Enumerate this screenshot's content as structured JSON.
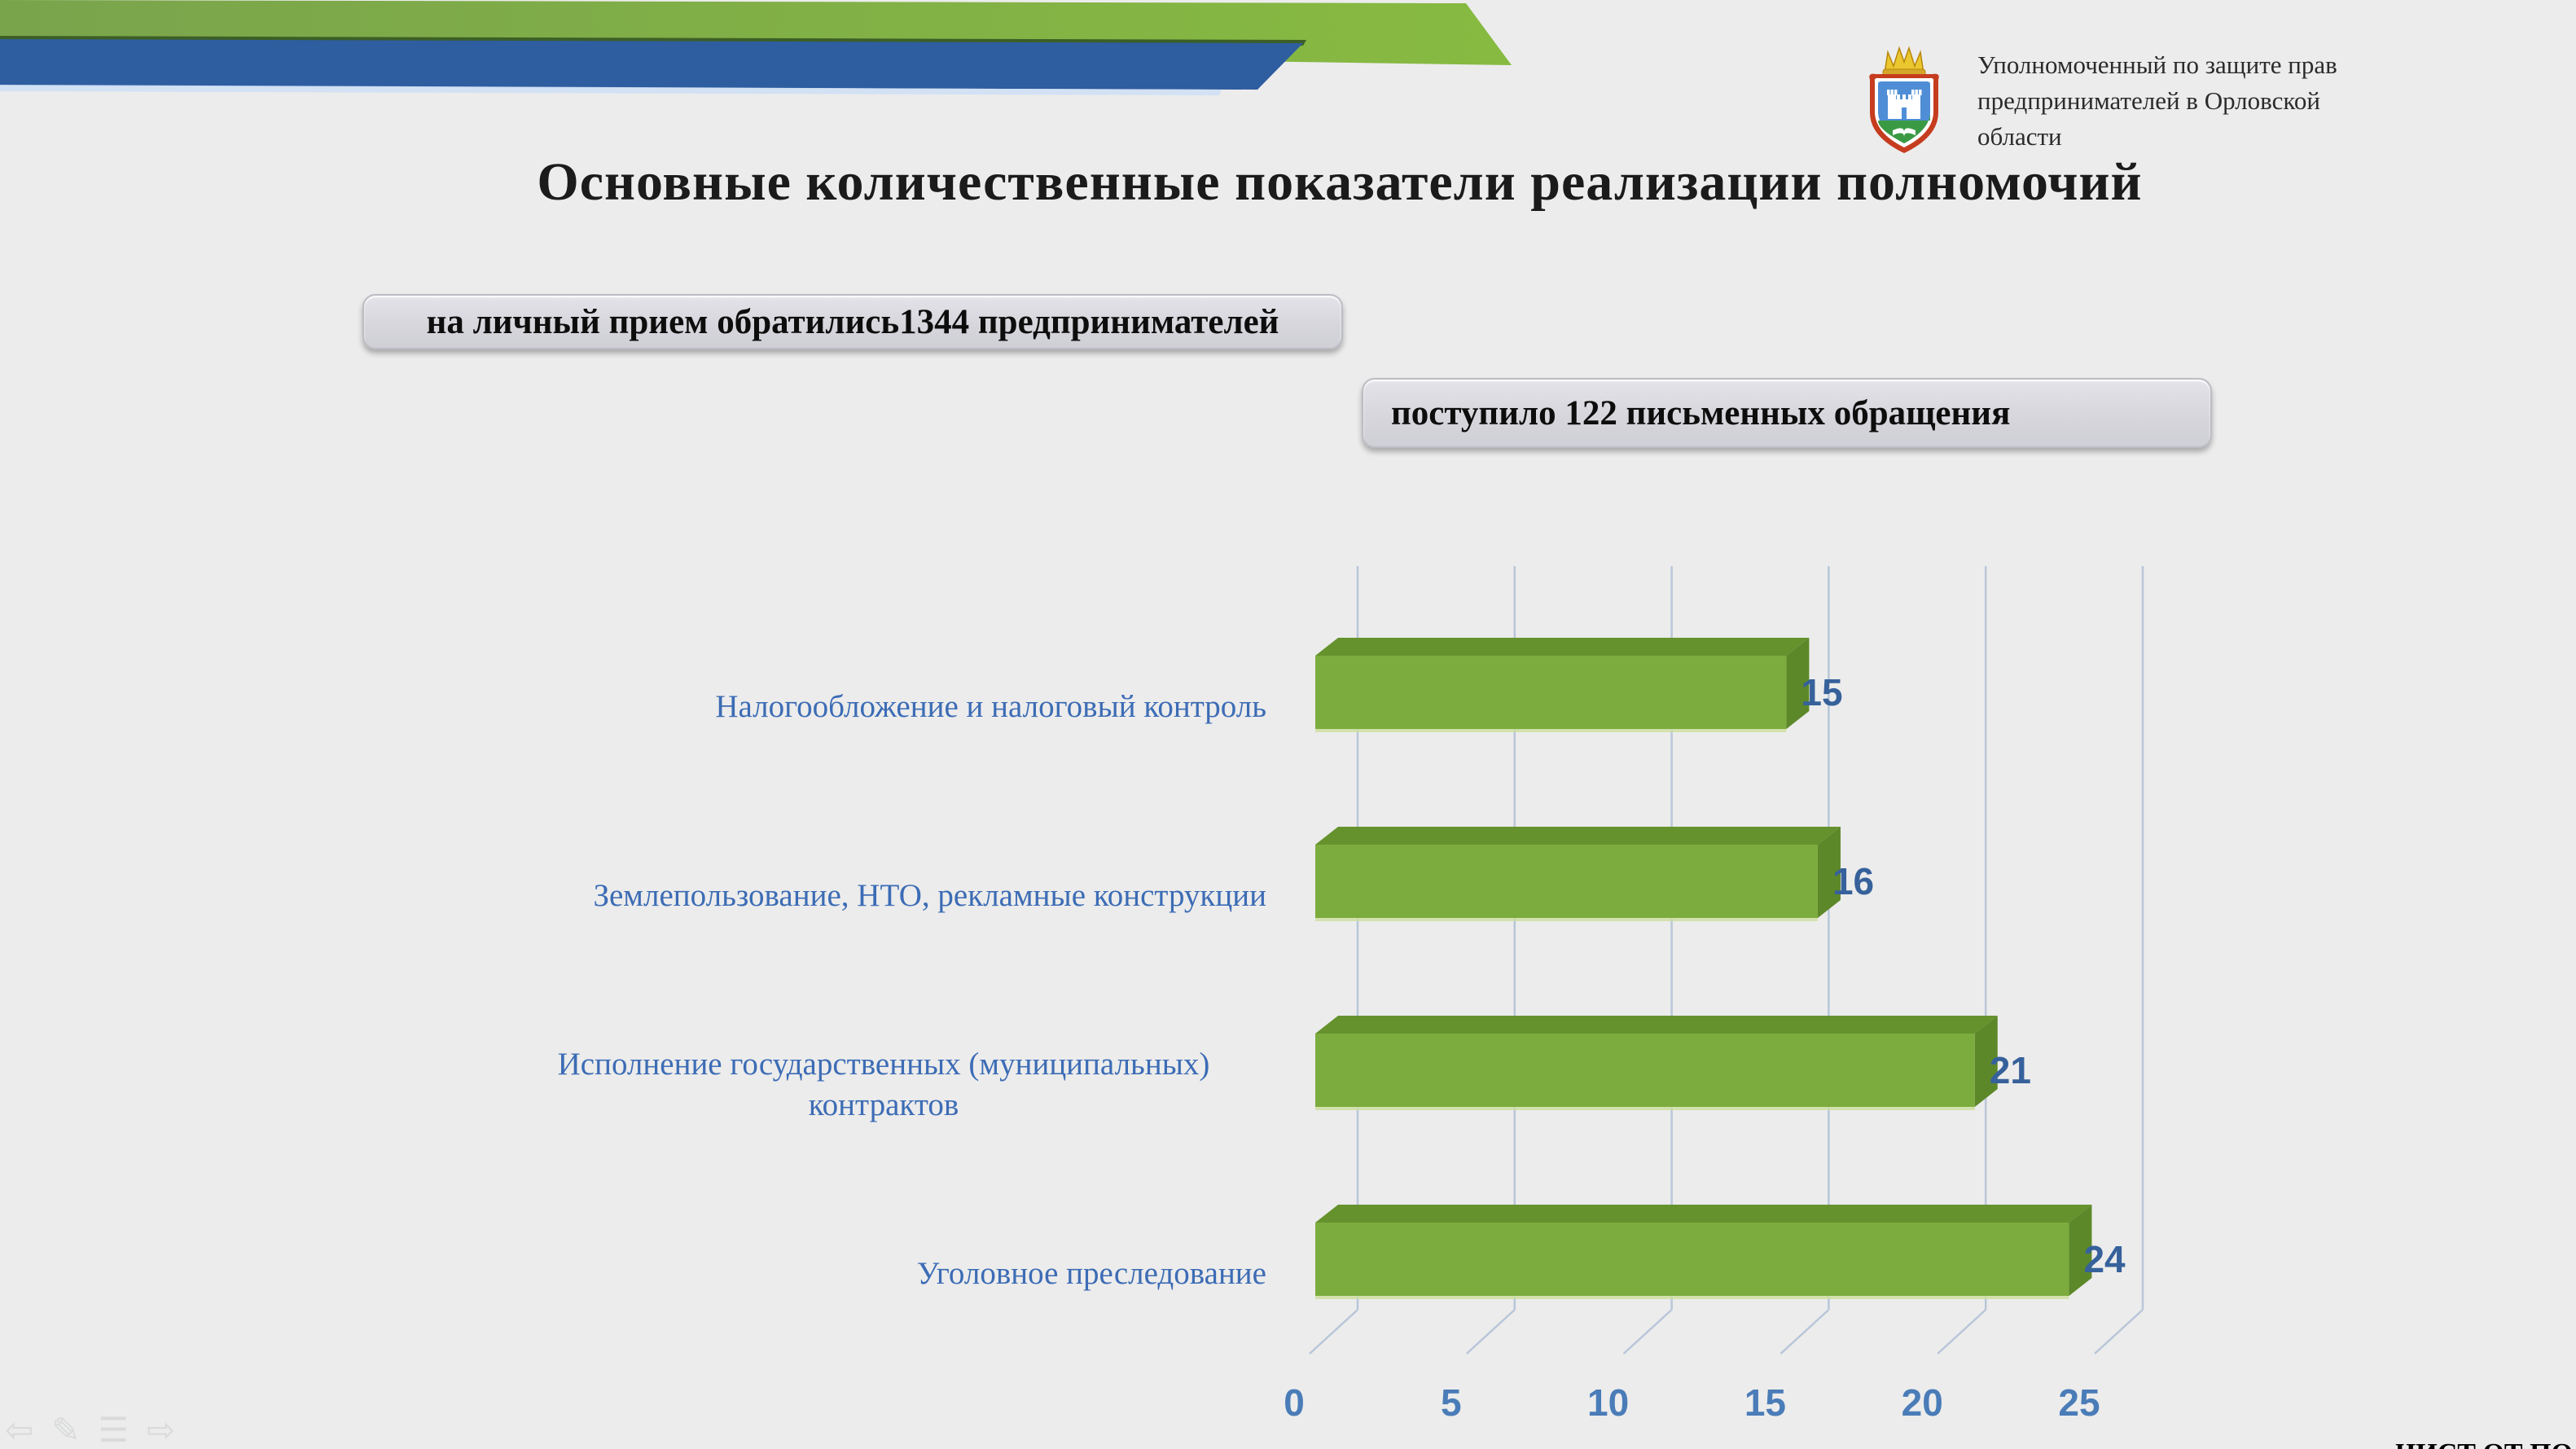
{
  "page": {
    "background": "#ececec"
  },
  "header": {
    "green_band_color": "#7fae43",
    "blue_band_color": "#2e5da0",
    "logo_name": "oryol-region-coat-of-arms",
    "org_lines": [
      "Уполномоченный по защите прав",
      "предпринимателей в Орловской",
      "области"
    ]
  },
  "title": "Основные количественные показатели реализации полномочий",
  "callouts": {
    "personal": "на личный прием обратились1344 предпринимателей",
    "written": "поступило 122 письменных обращения"
  },
  "chart_data": {
    "type": "bar",
    "orientation": "horizontal",
    "effect": "3d-extruded",
    "categories": [
      "Налогообложение и налоговый контроль",
      "Землепользование, НТО, рекламные конструкции",
      "Исполнение государственных (муниципальных) контрактов",
      "Уголовное преследование"
    ],
    "values": [
      15,
      16,
      21,
      24
    ],
    "xticks": [
      0,
      5,
      10,
      15,
      20,
      25
    ],
    "xlim": [
      0,
      25
    ],
    "grid": true,
    "legend": false,
    "title": "",
    "xlabel": "",
    "ylabel": "",
    "style": {
      "bar_front": "#7cac3e",
      "bar_top": "#66922e",
      "bar_side": "#5d8829",
      "bar_bottom_edge": "#cdde9e",
      "gridline": "#b9c6d9",
      "category_color": "#3c6cb5",
      "value_color": "#36619b",
      "tick_color": "#4a7cb8"
    }
  },
  "footer": {
    "nav": [
      {
        "name": "prev-slide",
        "glyph": "⇦"
      },
      {
        "name": "edit-pen",
        "glyph": "✎"
      },
      {
        "name": "slide-list",
        "glyph": "☰"
      },
      {
        "name": "next-slide",
        "glyph": "⇨"
      }
    ],
    "cutoff_text": "ЧИСТ ОТ ПО"
  }
}
